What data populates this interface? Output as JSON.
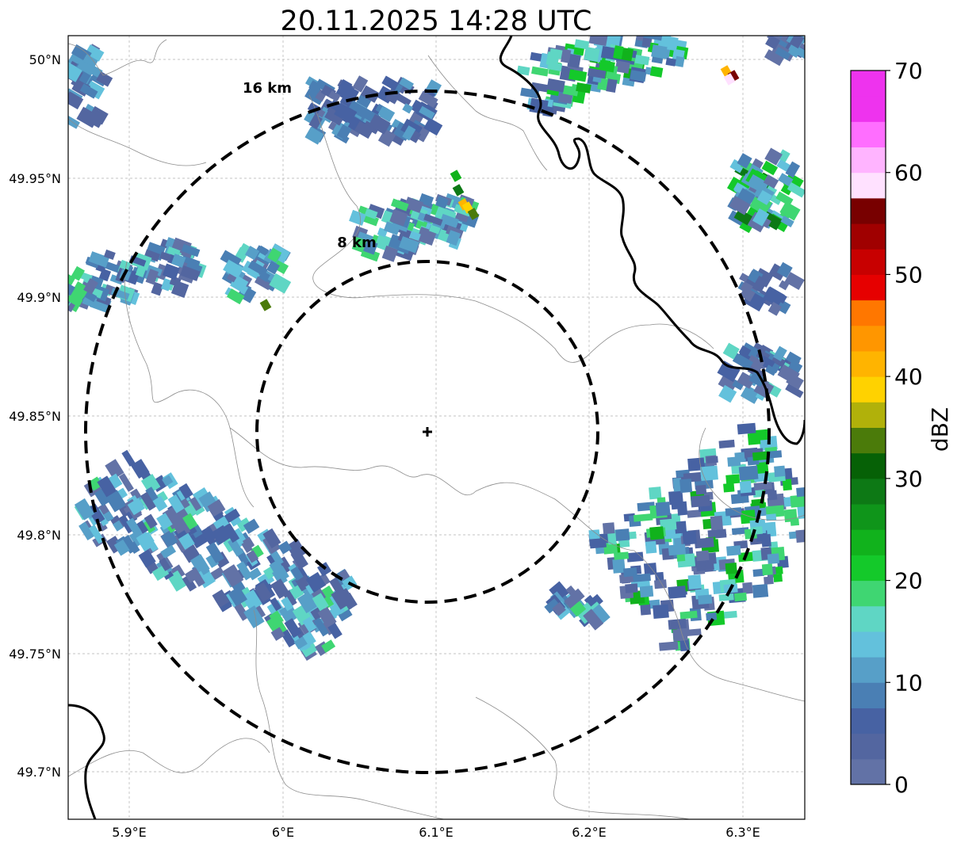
{
  "title": "20.11.2025 14:28 UTC",
  "map": {
    "lon_ticks": [
      "5.9°E",
      "6°E",
      "6.1°E",
      "6.2°E",
      "6.3°E"
    ],
    "lat_ticks": [
      "50°N",
      "49.95°N",
      "49.9°N",
      "49.85°N",
      "49.8°N",
      "49.75°N",
      "49.7°N"
    ],
    "rings": [
      {
        "label": "8 km",
        "radius_km": 8
      },
      {
        "label": "16 km",
        "radius_km": 16
      }
    ],
    "radar_site_marker": "plus-icon"
  },
  "colorbar": {
    "label": "dBZ",
    "ticks": [
      "0",
      "10",
      "20",
      "30",
      "40",
      "50",
      "60",
      "70"
    ],
    "min": 0,
    "max": 70,
    "step": 5,
    "colors": [
      "#6272a6",
      "#5366a0",
      "#4762a3",
      "#4a7fb4",
      "#579fc8",
      "#63c1dc",
      "#5fd6c4",
      "#3fd672",
      "#14c92a",
      "#11b21c",
      "#0f951a",
      "#0d7915",
      "#066106",
      "#4b7b0a",
      "#b1b10a",
      "#ffd200",
      "#ffb400",
      "#ff9600",
      "#ff7700",
      "#e60000",
      "#c80000",
      "#a00000",
      "#780000",
      "#ffe1ff",
      "#ffb4ff",
      "#ff6eff",
      "#ee33ee",
      "#ee33ee"
    ]
  }
}
